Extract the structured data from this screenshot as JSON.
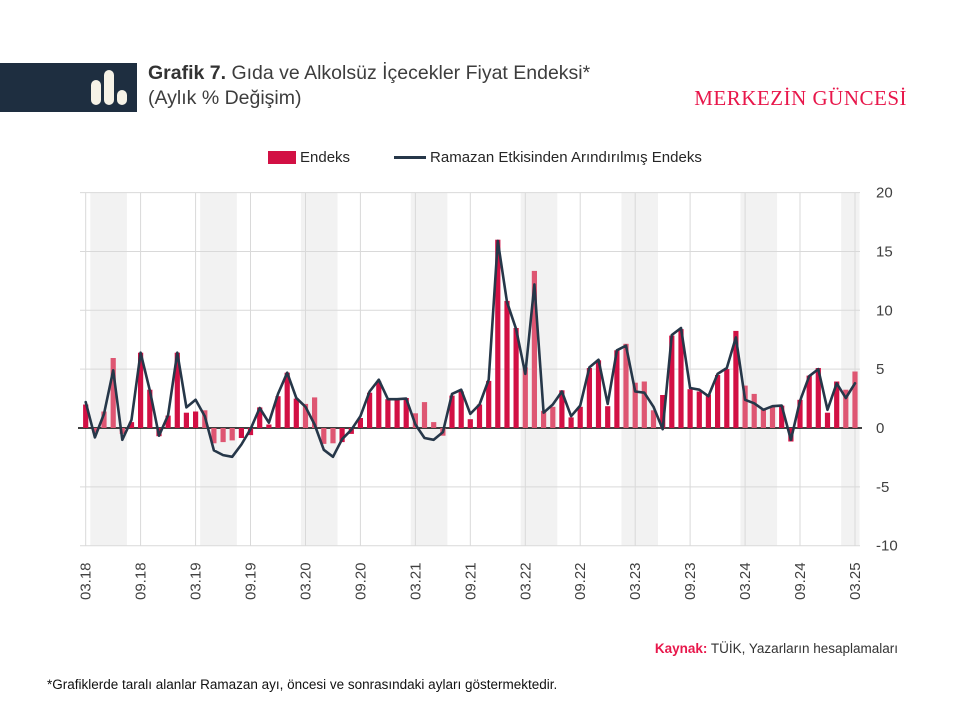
{
  "header": {
    "title_bold": "Grafik 7.",
    "title_rest": " Gıda ve Alkolsüz İçecekler Fiyat Endeksi*",
    "title_line2": "(Aylık % Değişim)",
    "brand": "MERKEZİN GÜNCESİ"
  },
  "legend": {
    "bars_label": "Endeks",
    "line_label": "Ramazan Etkisinden Arındırılmış Endeks"
  },
  "footer": {
    "source_label": "Kaynak:",
    "source_text": " TÜİK, Yazarların hesaplamaları",
    "footnote": "*Grafiklerde taralı alanlar Ramazan ayı, öncesi ve sonrasındaki ayları göstermektedir."
  },
  "colors": {
    "bar": "#d21044",
    "bar_in_band": "#de5672",
    "line": "#263749",
    "band": "#f2f2f2",
    "grid": "#d9d9d9",
    "zero_axis": "#000000",
    "axis_text": "#404040",
    "brand_red": "#e8174b",
    "logo_navy": "#1e2e40"
  },
  "chart_data": {
    "type": "bar",
    "title": "Gıda ve Alkolsüz İçecekler Fiyat Endeksi (Aylık % Değişim)",
    "start_month": "03.18",
    "end_month": "03.25",
    "months_count": 85,
    "x_tick_step": 6,
    "x_tick_labels": [
      "03.18",
      "09.18",
      "03.19",
      "09.19",
      "03.20",
      "09.20",
      "03.21",
      "09.21",
      "03.22",
      "09.22",
      "03.23",
      "09.23",
      "03.24",
      "09.24",
      "03.25"
    ],
    "y_ticks": [
      20,
      15,
      10,
      5,
      0,
      -5,
      -10
    ],
    "ylim": [
      -10,
      20
    ],
    "grid": true,
    "legend_position": "top",
    "series": [
      {
        "name": "Endeks",
        "type": "bar",
        "values": [
          2.0,
          -0.4,
          1.4,
          5.95,
          -0.5,
          0.5,
          6.4,
          3.25,
          -0.7,
          1.05,
          6.4,
          1.3,
          1.4,
          1.5,
          -1.3,
          -1.2,
          -1.05,
          -0.85,
          -0.6,
          1.75,
          0.3,
          2.7,
          4.7,
          2.5,
          2.05,
          2.6,
          -1.35,
          -1.3,
          -1.2,
          -0.5,
          0.85,
          3.0,
          3.95,
          2.45,
          2.45,
          2.55,
          1.25,
          2.2,
          0.5,
          -0.65,
          2.75,
          3.1,
          0.75,
          2.0,
          4.0,
          16.0,
          10.8,
          8.5,
          5.15,
          13.35,
          1.45,
          1.8,
          3.2,
          0.9,
          1.8,
          5.1,
          5.75,
          1.85,
          6.6,
          7.15,
          3.85,
          3.95,
          1.5,
          2.8,
          7.85,
          8.4,
          3.3,
          3.1,
          2.85,
          4.5,
          5.0,
          8.25,
          3.6,
          2.9,
          1.55,
          1.8,
          1.9,
          -1.15,
          2.4,
          4.45,
          5.1,
          1.3,
          3.95,
          3.25,
          4.8
        ]
      },
      {
        "name": "Ramazan Etkisinden Arındırılmış Endeks",
        "type": "line",
        "values": [
          2.2,
          -0.8,
          1.2,
          4.9,
          -1.0,
          0.7,
          6.4,
          3.2,
          -0.65,
          1.1,
          6.4,
          1.75,
          2.4,
          1.0,
          -1.9,
          -2.3,
          -2.45,
          -1.4,
          -0.1,
          1.7,
          0.45,
          2.9,
          4.7,
          2.55,
          1.8,
          0.3,
          -1.85,
          -2.45,
          -0.95,
          -0.15,
          1.0,
          3.1,
          4.1,
          2.45,
          2.45,
          2.5,
          0.3,
          -0.85,
          -1.0,
          -0.35,
          2.9,
          3.25,
          1.2,
          2.0,
          4.1,
          15.9,
          10.7,
          8.4,
          4.6,
          12.2,
          1.3,
          2.0,
          3.1,
          1.0,
          1.9,
          5.15,
          5.8,
          2.05,
          6.6,
          7.0,
          3.1,
          3.0,
          1.8,
          -0.1,
          7.9,
          8.5,
          3.4,
          3.25,
          2.7,
          4.6,
          5.1,
          7.7,
          2.4,
          2.1,
          1.55,
          1.85,
          1.9,
          -1.0,
          2.3,
          4.4,
          5.0,
          1.55,
          3.8,
          2.55,
          3.8
        ]
      }
    ],
    "ramadan_bands_month_index": [
      {
        "start": 1,
        "end": 4
      },
      {
        "start": 13,
        "end": 16
      },
      {
        "start": 24,
        "end": 27
      },
      {
        "start": 36,
        "end": 39
      },
      {
        "start": 48,
        "end": 51
      },
      {
        "start": 59,
        "end": 62
      },
      {
        "start": 72,
        "end": 75
      },
      {
        "start": 83,
        "end": 84
      }
    ]
  }
}
